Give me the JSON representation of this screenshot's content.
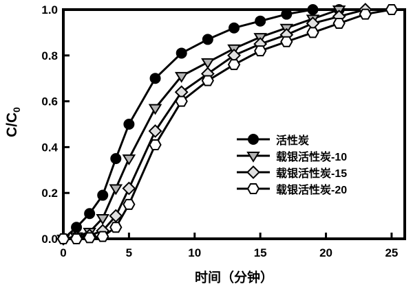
{
  "chart_data": {
    "type": "line",
    "title": "",
    "xlabel": "时间（分钟）",
    "ylabel_main": "C/C",
    "ylabel_sub": "0",
    "xlim": [
      0,
      26
    ],
    "ylim": [
      0,
      1.0
    ],
    "grid": false,
    "legend_position": "center-right",
    "background_color": "#ffffff",
    "line_color": "#000000",
    "xticks": [
      "0",
      "5",
      "10",
      "15",
      "20",
      "25"
    ],
    "xtick_values": [
      0,
      5,
      10,
      15,
      20,
      25
    ],
    "yticks": [
      "0.0",
      "0.2",
      "0.4",
      "0.6",
      "0.8",
      "1.0"
    ],
    "ytick_values": [
      0,
      0.2,
      0.4,
      0.6,
      0.8,
      1.0
    ],
    "series": [
      {
        "name": "活性炭",
        "marker": "circle",
        "marker_fill": "#000000",
        "x": [
          0,
          1,
          2,
          3,
          4,
          5,
          7,
          9,
          11,
          13,
          15,
          17,
          19,
          21
        ],
        "y": [
          0.0,
          0.05,
          0.11,
          0.19,
          0.35,
          0.5,
          0.7,
          0.81,
          0.87,
          0.92,
          0.95,
          0.98,
          1.0,
          1.0
        ]
      },
      {
        "name": "载银活性炭-10",
        "marker": "triangle-down",
        "marker_fill": "#b3b3b3",
        "x": [
          0,
          1,
          2,
          3,
          4,
          5,
          7,
          9,
          11,
          13,
          15,
          17,
          19,
          21
        ],
        "y": [
          0.0,
          0.01,
          0.03,
          0.09,
          0.22,
          0.35,
          0.57,
          0.71,
          0.77,
          0.83,
          0.88,
          0.92,
          0.96,
          1.0
        ]
      },
      {
        "name": "载银活性炭-15",
        "marker": "diamond",
        "marker_fill": "#e0e0e0",
        "x": [
          0,
          1,
          2,
          3,
          4,
          5,
          7,
          9,
          11,
          13,
          15,
          17,
          19,
          21,
          23
        ],
        "y": [
          0.0,
          0.005,
          0.015,
          0.035,
          0.1,
          0.22,
          0.47,
          0.64,
          0.72,
          0.8,
          0.85,
          0.89,
          0.94,
          0.97,
          1.0
        ]
      },
      {
        "name": "载银活性炭-20",
        "marker": "hexagon",
        "marker_fill": "#ffffff",
        "x": [
          0,
          1,
          2,
          3,
          4,
          5,
          7,
          9,
          11,
          13,
          15,
          17,
          19,
          21,
          23,
          25
        ],
        "y": [
          0.0,
          0.0,
          0.005,
          0.01,
          0.05,
          0.15,
          0.41,
          0.6,
          0.69,
          0.76,
          0.82,
          0.86,
          0.9,
          0.94,
          0.98,
          1.0
        ]
      }
    ]
  }
}
